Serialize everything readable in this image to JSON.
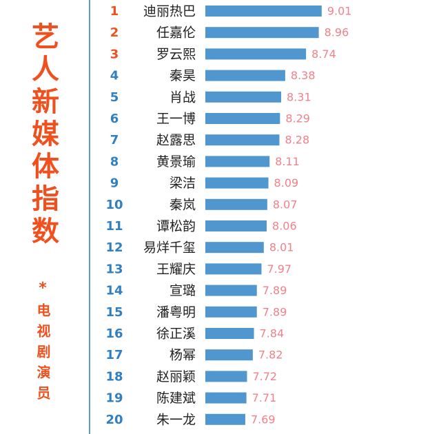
{
  "chart_data": {
    "type": "bar",
    "orientation": "horizontal",
    "title": "艺人新媒体指数",
    "separator": "*",
    "subtitle": "电视剧演员",
    "ranks": [
      "1",
      "2",
      "3",
      "4",
      "5",
      "6",
      "7",
      "8",
      "9",
      "10",
      "11",
      "12",
      "13",
      "14",
      "15",
      "16",
      "17",
      "18",
      "19",
      "20"
    ],
    "rank_colors": [
      "#f0501e",
      "#f0501e",
      "#f0501e",
      "#2f7fc1",
      "#2f7fc1",
      "#2f7fc1",
      "#2f7fc1",
      "#2f7fc1",
      "#2f7fc1",
      "#2f7fc1",
      "#2f7fc1",
      "#2f7fc1",
      "#2f7fc1",
      "#2f7fc1",
      "#2f7fc1",
      "#2f7fc1",
      "#2f7fc1",
      "#2f7fc1",
      "#2f7fc1",
      "#2f7fc1"
    ],
    "categories": [
      "迪丽热巴",
      "任嘉伦",
      "罗云熙",
      "秦昊",
      "肖战",
      "王一博",
      "赵露思",
      "黄景瑜",
      "梁洁",
      "秦岚",
      "谭松韵",
      "易烊千玺",
      "王耀庆",
      "宣璐",
      "潘粤明",
      "徐正溪",
      "杨幂",
      "赵丽颖",
      "陈建斌",
      "朱一龙"
    ],
    "values": [
      9.01,
      8.96,
      8.74,
      8.38,
      8.31,
      8.29,
      8.28,
      8.11,
      8.09,
      8.07,
      8.06,
      8.01,
      7.97,
      7.89,
      7.89,
      7.84,
      7.82,
      7.72,
      7.71,
      7.69
    ],
    "color": "#5197cf",
    "label_color": "#f2808a",
    "xlim": [
      7,
      10
    ]
  }
}
